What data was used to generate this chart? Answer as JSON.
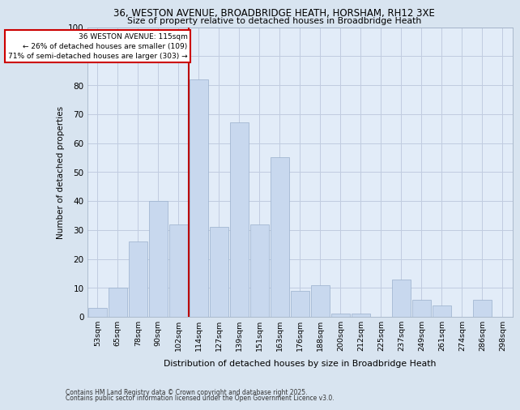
{
  "title_line1": "36, WESTON AVENUE, BROADBRIDGE HEATH, HORSHAM, RH12 3XE",
  "title_line2": "Size of property relative to detached houses in Broadbridge Heath",
  "xlabel": "Distribution of detached houses by size in Broadbridge Heath",
  "ylabel": "Number of detached properties",
  "categories": [
    "53sqm",
    "65sqm",
    "78sqm",
    "90sqm",
    "102sqm",
    "114sqm",
    "127sqm",
    "139sqm",
    "151sqm",
    "163sqm",
    "176sqm",
    "188sqm",
    "200sqm",
    "212sqm",
    "225sqm",
    "237sqm",
    "249sqm",
    "261sqm",
    "274sqm",
    "286sqm",
    "298sqm"
  ],
  "values": [
    3,
    10,
    26,
    40,
    32,
    82,
    31,
    67,
    32,
    55,
    9,
    11,
    1,
    1,
    0,
    13,
    6,
    4,
    0,
    6,
    0
  ],
  "bar_color": "#c8d8ee",
  "bar_edge_color": "#9ab0cc",
  "redline_color": "#bb0000",
  "redline_bar_index": 5,
  "annotation_text": "36 WESTON AVENUE: 115sqm\n← 26% of detached houses are smaller (109)\n71% of semi-detached houses are larger (303) →",
  "annotation_box_facecolor": "#ffffff",
  "annotation_box_edgecolor": "#cc0000",
  "ylim": [
    0,
    100
  ],
  "yticks": [
    0,
    10,
    20,
    30,
    40,
    50,
    60,
    70,
    80,
    90,
    100
  ],
  "grid_color": "#c0cce0",
  "bg_color": "#d8e4f0",
  "plot_bg_color": "#e2ecf8",
  "footer1": "Contains HM Land Registry data © Crown copyright and database right 2025.",
  "footer2": "Contains public sector information licensed under the Open Government Licence v3.0."
}
